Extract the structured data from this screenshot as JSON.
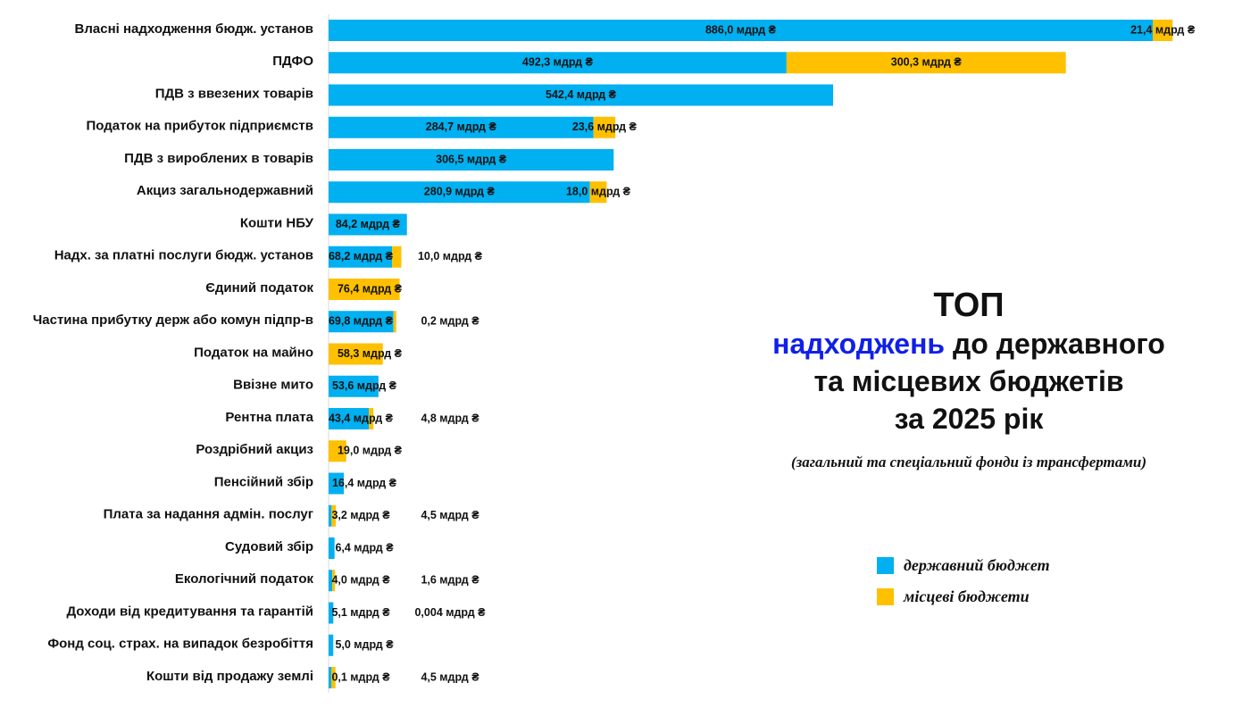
{
  "title": {
    "top": "ТОП",
    "accent": "надходжень",
    "line1_rest": " до державного",
    "line2": "та місцевих бюджетів",
    "line3": "за 2025 рік",
    "subtitle": "(загальний та спеціальний фонди із трансфертами)"
  },
  "colors": {
    "state": "#00b0f0",
    "local": "#ffc000",
    "accent": "#1020e8"
  },
  "chart_data": {
    "type": "bar",
    "orientation": "horizontal",
    "stacked": true,
    "unit": "мдрд ₴",
    "categories": [
      "Власні надходження бюдж. установ",
      "ПДФО",
      "ПДВ з ввезених товарів",
      "Податок на прибуток підприємств",
      "ПДВ з вироблених в товарів",
      "Акциз загальнодержавний",
      "Кошти НБУ",
      "Надх. за платні послуги бюдж. установ",
      "Єдиний податок",
      "Частина прибутку держ або комун підпр-в",
      "Податок на майно",
      "Ввізне мито",
      "Рентна плата",
      "Роздрібний акциз",
      "Пенсійний збір",
      "Плата за надання адмін. послуг",
      "Судовий збір",
      "Екологічний податок",
      "Доходи від кредитування та гарантій",
      "Фонд соц. страх. на випадок безробіття",
      "Кошти від продажу землі"
    ],
    "series": [
      {
        "name": "державний бюджет",
        "values": [
          886.0,
          492.3,
          542.4,
          284.7,
          306.5,
          280.9,
          84.2,
          68.2,
          null,
          69.8,
          null,
          53.6,
          43.4,
          null,
          16.4,
          3.2,
          6.4,
          4.0,
          5.1,
          5.0,
          0.1
        ],
        "labels": [
          "886,0 мдрд ₴",
          "492,3 мдрд ₴",
          "542,4 мдрд ₴",
          "284,7 мдрд ₴",
          "306,5 мдрд ₴",
          "280,9 мдрд ₴",
          "84,2 мдрд ₴",
          "68,2 мдрд ₴",
          "",
          "69,8 мдрд ₴",
          "",
          "53,6 мдрд ₴",
          "43,4 мдрд ₴",
          "",
          "16,4 мдрд ₴",
          "3,2 мдрд ₴",
          "6,4 мдрд ₴",
          "4,0 мдрд ₴",
          "5,1 мдрд ₴",
          "5,0 мдрд ₴",
          "0,1 мдрд ₴"
        ]
      },
      {
        "name": "місцеві бюджети",
        "values": [
          21.4,
          300.3,
          null,
          23.6,
          null,
          18.0,
          null,
          10.0,
          76.4,
          0.2,
          58.3,
          null,
          4.8,
          19.0,
          null,
          4.5,
          null,
          1.6,
          0.004,
          null,
          4.5
        ],
        "labels": [
          "21,4 мдрд ₴",
          "300,3 мдрд ₴",
          "",
          "23,6 мдрд ₴",
          "",
          "18,0 мдрд ₴",
          "",
          "10,0 мдрд ₴",
          "76,4 мдрд ₴",
          "0,2 мдрд ₴",
          "58,3 мдрд ₴",
          "",
          "4,8 мдрд ₴",
          "19,0 мдрд ₴",
          "",
          "4,5 мдрд ₴",
          "",
          "1,6 мдрд ₴",
          "0,004 мдрд ₴",
          "",
          "4,5 мдрд ₴"
        ]
      }
    ],
    "legend_placement": "bottom-right",
    "grid": false
  }
}
